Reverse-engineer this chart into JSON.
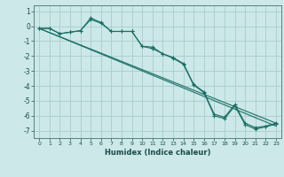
{
  "xlabel": "Humidex (Indice chaleur)",
  "bg_color": "#cce8e8",
  "grid_color": "#aacccc",
  "line_color": "#1a6e64",
  "xlim": [
    -0.5,
    23.5
  ],
  "ylim": [
    -7.5,
    1.4
  ],
  "yticks": [
    1,
    0,
    -1,
    -2,
    -3,
    -4,
    -5,
    -6,
    -7
  ],
  "xticks": [
    0,
    1,
    2,
    3,
    4,
    5,
    6,
    7,
    8,
    9,
    10,
    11,
    12,
    13,
    14,
    15,
    16,
    17,
    18,
    19,
    20,
    21,
    22,
    23
  ],
  "line1_x": [
    0,
    1,
    2,
    3,
    4,
    5,
    6,
    7,
    8,
    9,
    10,
    11,
    12,
    13,
    14,
    15,
    16,
    17,
    18,
    19,
    20,
    21,
    22,
    23
  ],
  "line1_y": [
    -0.15,
    -0.15,
    -0.5,
    -0.4,
    -0.3,
    0.55,
    0.25,
    -0.35,
    -0.35,
    -0.35,
    -1.35,
    -1.4,
    -1.85,
    -2.1,
    -2.5,
    -3.9,
    -4.4,
    -5.9,
    -6.1,
    -5.25,
    -6.5,
    -6.8,
    -6.7,
    -6.5
  ],
  "line2_x": [
    0,
    1,
    2,
    3,
    4,
    5,
    6,
    7,
    8,
    9,
    10,
    11,
    12,
    13,
    14,
    15,
    16,
    17,
    18,
    19,
    20,
    21,
    22,
    23
  ],
  "line2_y": [
    -0.15,
    -0.15,
    -0.5,
    -0.4,
    -0.3,
    0.45,
    0.2,
    -0.35,
    -0.35,
    -0.35,
    -1.35,
    -1.5,
    -1.85,
    -2.15,
    -2.55,
    -3.95,
    -4.45,
    -6.0,
    -6.2,
    -5.35,
    -6.6,
    -6.9,
    -6.75,
    -6.55
  ],
  "line3_x": [
    0,
    23
  ],
  "line3_y": [
    -0.15,
    -6.5
  ],
  "line4_x": [
    0,
    23
  ],
  "line4_y": [
    -0.15,
    -6.7
  ]
}
